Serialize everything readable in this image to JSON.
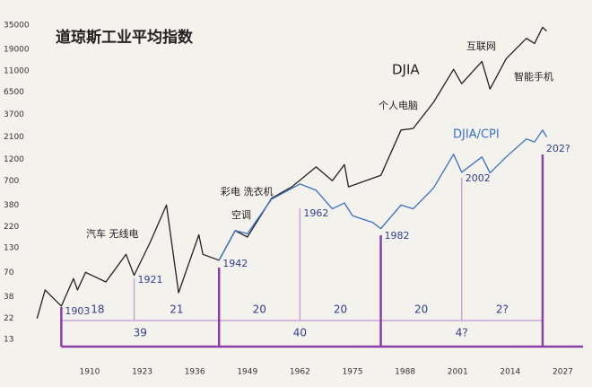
{
  "chart_data": {
    "type": "line",
    "title": "道琼斯工业平均指数",
    "log_scale": true,
    "xlim": [
      1896,
      2032
    ],
    "ylim": [
      8,
      50000
    ],
    "xticks": [
      1910,
      1923,
      1936,
      1949,
      1962,
      1975,
      1988,
      2001,
      2014,
      2027
    ],
    "yticks": [
      13,
      22,
      38,
      70,
      130,
      220,
      380,
      700,
      1200,
      2100,
      3700,
      6500,
      11000,
      19000,
      35000
    ],
    "series": [
      {
        "name": "DJIA",
        "color": "#222222",
        "x": [
          1897,
          1899,
          1903,
          1906,
          1907,
          1909,
          1914,
          1919,
          1921,
          1925,
          1929,
          1932,
          1937,
          1938,
          1942,
          1946,
          1949,
          1955,
          1960,
          1966,
          1970,
          1973,
          1974,
          1982,
          1987,
          1990,
          1995,
          2000,
          2002,
          2007,
          2009,
          2013,
          2018,
          2020,
          2022,
          2023
        ],
        "values": [
          22,
          45,
          30,
          60,
          45,
          70,
          55,
          110,
          65,
          150,
          380,
          42,
          180,
          110,
          95,
          200,
          170,
          450,
          600,
          990,
          700,
          1050,
          600,
          800,
          2500,
          2600,
          5000,
          11500,
          8000,
          14000,
          7000,
          15000,
          25000,
          22000,
          33000,
          30000
        ]
      },
      {
        "name": "DJIA/CPI",
        "color": "#3a6fc4",
        "x": [
          1942,
          1946,
          1949,
          1955,
          1962,
          1966,
          1970,
          1973,
          1975,
          1980,
          1982,
          1987,
          1990,
          1995,
          2000,
          2002,
          2007,
          2009,
          2013,
          2018,
          2020,
          2022,
          2023
        ],
        "values": [
          95,
          200,
          185,
          440,
          645,
          550,
          345,
          400,
          290,
          245,
          210,
          380,
          345,
          580,
          1360,
          865,
          1270,
          850,
          1270,
          2000,
          1850,
          2500,
          2100
        ]
      }
    ],
    "annotations": [
      "汽车 无线电",
      "彩电 洗衣机",
      "空调",
      "个人电脑",
      "互联网",
      "智能手机"
    ],
    "markers": [
      1903,
      1921,
      1942,
      1962,
      1982,
      2002,
      {
        "value": 2022,
        "label": "202?"
      }
    ],
    "cycles": [
      18,
      21,
      20,
      20,
      20,
      "2?"
    ],
    "long_cycles": [
      39,
      40,
      "4?"
    ]
  }
}
